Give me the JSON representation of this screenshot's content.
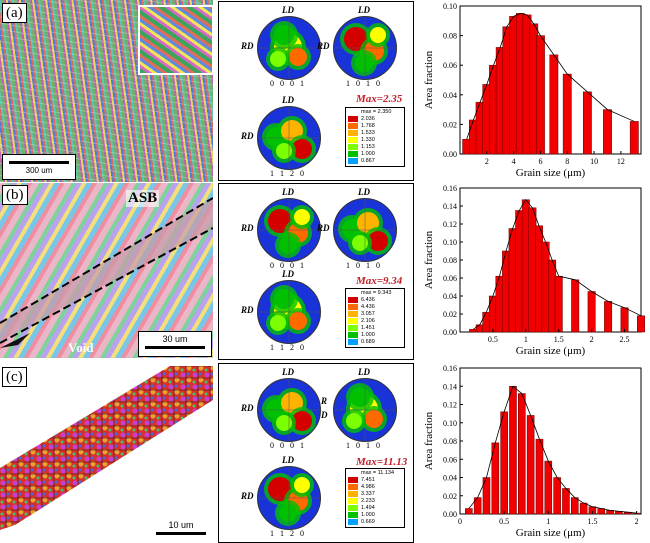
{
  "panels": [
    {
      "label": "(a)",
      "scale_text": "300 um",
      "max_label": "Max=2.35",
      "legend": [
        "max = 2.350",
        "2.036",
        "1.768",
        "1.533",
        "1.330",
        "1.153",
        "1.000",
        "0.867"
      ]
    },
    {
      "label": "(b)",
      "scale_text": "30 um",
      "max_label": "Max=9.34",
      "legend": [
        "max = 9.343",
        "6.436",
        "4.436",
        "3.057",
        "2.106",
        "1.451",
        "1.000",
        "0.689"
      ],
      "annot_asb": "ASB",
      "annot_void": "Void"
    },
    {
      "label": "(c)",
      "scale_text": "10 um",
      "max_label": "Max=11.13",
      "legend": [
        "max = 11.134",
        "7.451",
        "4.986",
        "3.337",
        "2.233",
        "1.494",
        "1.000",
        "0.669"
      ]
    }
  ],
  "pole_labels": {
    "ld": "LD",
    "rd": "RD",
    "r": "R",
    "d": "D",
    "p0001": "0 0 0 1",
    "p1010": "1 0 1 0",
    "p1120": "1 1 2 0"
  },
  "legend_colors": [
    "#d40000",
    "#ff6a00",
    "#ffb300",
    "#ffff00",
    "#7cff00",
    "#00c000",
    "#00a0ff",
    "#1a33d8"
  ],
  "chart_data": [
    {
      "type": "bar",
      "xlabel": "Grain size (μm)",
      "ylabel": "Area fraction",
      "xlim": [
        0,
        13.5
      ],
      "ylim": [
        0,
        0.1
      ],
      "xticks": [
        2,
        4,
        6,
        8,
        10,
        12
      ],
      "yticks": [
        0.0,
        0.02,
        0.04,
        0.06,
        0.08,
        0.1
      ],
      "x": [
        0.5,
        1.0,
        1.5,
        2.0,
        2.5,
        3.0,
        3.5,
        4.0,
        4.5,
        5.0,
        5.5,
        6.0,
        7.0,
        8.0,
        9.5,
        11.0,
        13.0
      ],
      "values": [
        0.01,
        0.023,
        0.035,
        0.047,
        0.06,
        0.072,
        0.086,
        0.093,
        0.095,
        0.094,
        0.088,
        0.08,
        0.067,
        0.054,
        0.042,
        0.03,
        0.022
      ]
    },
    {
      "type": "bar",
      "xlabel": "Grain size (μm)",
      "ylabel": "Area fraction",
      "xlim": [
        0,
        2.75
      ],
      "ylim": [
        0,
        0.16
      ],
      "xticks": [
        0.5,
        1.0,
        1.5,
        2.0,
        2.5
      ],
      "yticks": [
        0.0,
        0.02,
        0.04,
        0.06,
        0.08,
        0.1,
        0.12,
        0.14,
        0.16
      ],
      "x": [
        0.2,
        0.3,
        0.4,
        0.5,
        0.6,
        0.7,
        0.8,
        0.9,
        1.0,
        1.1,
        1.2,
        1.3,
        1.4,
        1.5,
        1.75,
        2.0,
        2.25,
        2.5,
        2.75
      ],
      "values": [
        0.003,
        0.008,
        0.022,
        0.04,
        0.062,
        0.09,
        0.115,
        0.135,
        0.147,
        0.138,
        0.118,
        0.1,
        0.08,
        0.062,
        0.058,
        0.045,
        0.034,
        0.027,
        0.018
      ]
    },
    {
      "type": "bar",
      "xlabel": "Grain size (μm)",
      "ylabel": "Area fraction",
      "xlim": [
        0,
        2.05
      ],
      "ylim": [
        0,
        0.16
      ],
      "xticks": [
        0.0,
        0.5,
        1.0,
        1.5,
        2.0
      ],
      "yticks": [
        0.0,
        0.02,
        0.04,
        0.06,
        0.08,
        0.1,
        0.12,
        0.14,
        0.16
      ],
      "x": [
        0.1,
        0.2,
        0.3,
        0.4,
        0.5,
        0.6,
        0.7,
        0.8,
        0.9,
        1.0,
        1.1,
        1.2,
        1.3,
        1.4,
        1.5,
        1.6,
        1.7,
        1.8,
        1.9,
        2.0
      ],
      "values": [
        0.006,
        0.018,
        0.04,
        0.078,
        0.112,
        0.14,
        0.132,
        0.108,
        0.082,
        0.058,
        0.04,
        0.028,
        0.018,
        0.012,
        0.008,
        0.006,
        0.004,
        0.003,
        0.002,
        0.001
      ]
    }
  ]
}
